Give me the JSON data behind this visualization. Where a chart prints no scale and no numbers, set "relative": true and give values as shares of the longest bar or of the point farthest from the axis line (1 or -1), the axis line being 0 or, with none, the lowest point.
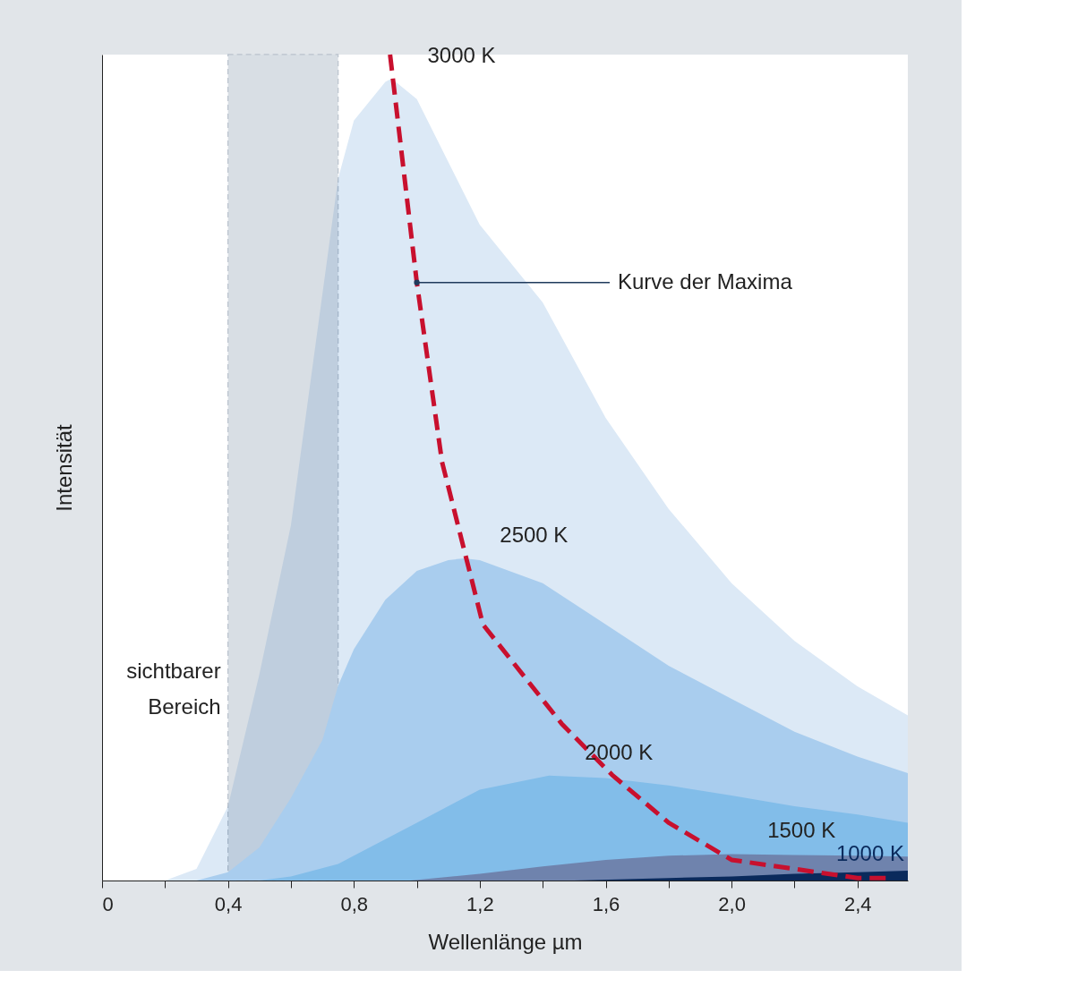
{
  "chart_data": {
    "type": "area",
    "relative": true,
    "xlabel": "Wellenlänge µm",
    "ylabel": "Intensität",
    "xlim": [
      0,
      2.56
    ],
    "xticks": [
      0,
      {
        "value": 0.2,
        "label": null
      },
      {
        "value": 0.4,
        "label": "0,4"
      },
      {
        "value": 0.6,
        "label": null
      },
      {
        "value": 0.8,
        "label": "0,8"
      },
      {
        "value": 1.0,
        "label": null
      },
      {
        "value": 1.2,
        "label": "1,2"
      },
      {
        "value": 1.4,
        "label": null
      },
      {
        "value": 1.6,
        "label": "1,6"
      },
      {
        "value": 1.8,
        "label": null
      },
      {
        "value": 2.0,
        "label": "2,0"
      },
      {
        "value": 2.2,
        "label": null
      },
      {
        "value": 2.4,
        "label": "2,4"
      }
    ],
    "series": [
      {
        "name": "3000 K",
        "color": "#dce9f6",
        "x": [
          0.2,
          0.3,
          0.4,
          0.5,
          0.6,
          0.7,
          0.75,
          0.8,
          0.9,
          0.92,
          1.0,
          1.1,
          1.2,
          1.4,
          1.6,
          1.8,
          2.0,
          2.2,
          2.4,
          2.56
        ],
        "values": [
          0,
          0.014,
          0.09,
          0.25,
          0.43,
          0.71,
          0.85,
          0.92,
          0.967,
          0.971,
          0.946,
          0.87,
          0.794,
          0.7,
          0.56,
          0.45,
          0.36,
          0.29,
          0.235,
          0.2
        ]
      },
      {
        "name": "2500 K",
        "color": "#a9cdee",
        "x": [
          0.3,
          0.4,
          0.5,
          0.6,
          0.7,
          0.75,
          0.8,
          0.9,
          1.0,
          1.1,
          1.15,
          1.2,
          1.4,
          1.6,
          1.8,
          2.0,
          2.2,
          2.4,
          2.56
        ],
        "values": [
          0,
          0.01,
          0.04,
          0.1,
          0.17,
          0.236,
          0.28,
          0.34,
          0.375,
          0.388,
          0.39,
          0.388,
          0.36,
          0.31,
          0.26,
          0.22,
          0.18,
          0.15,
          0.13
        ]
      },
      {
        "name": "2000 K",
        "color": "#82bde9",
        "x": [
          0.5,
          0.6,
          0.75,
          0.8,
          1.0,
          1.2,
          1.42,
          1.6,
          1.8,
          2.0,
          2.2,
          2.4,
          2.56
        ],
        "values": [
          0,
          0.005,
          0.02,
          0.03,
          0.07,
          0.11,
          0.127,
          0.124,
          0.115,
          0.103,
          0.09,
          0.08,
          0.07
        ]
      },
      {
        "name": "1500 K",
        "color": "#6f83ad",
        "x": [
          0.98,
          1.2,
          1.4,
          1.6,
          1.8,
          2.0,
          2.2,
          2.4,
          2.56
        ],
        "values": [
          0,
          0.008,
          0.017,
          0.025,
          0.03,
          0.032,
          0.031,
          0.03,
          0.029
        ]
      },
      {
        "name": "1000 K",
        "color": "#0a2a5c",
        "x": [
          1.5,
          1.8,
          2.0,
          2.2,
          2.4,
          2.56
        ],
        "values": [
          0,
          0.003,
          0.005,
          0.008,
          0.01,
          0.012
        ]
      },
      {
        "type": "line",
        "line_style": "dashed",
        "color": "#c8102e",
        "x": [
          0.915,
          1.0,
          1.08,
          1.21,
          1.46,
          1.62,
          1.8,
          2.0,
          2.4,
          2.5
        ],
        "values": [
          1.0,
          0.724,
          0.507,
          0.31,
          0.19,
          0.128,
          0.07,
          0.025,
          0.003,
          0.003
        ]
      }
    ],
    "bands": [
      {
        "axis": "x",
        "from": 0.4,
        "to": 0.75,
        "label": "sichtbarer Bereich",
        "color": "#7f93a8"
      }
    ],
    "annotations": [
      {
        "text": "Kurve der Maxima",
        "x": 1.0,
        "y": 0.724
      }
    ]
  }
}
